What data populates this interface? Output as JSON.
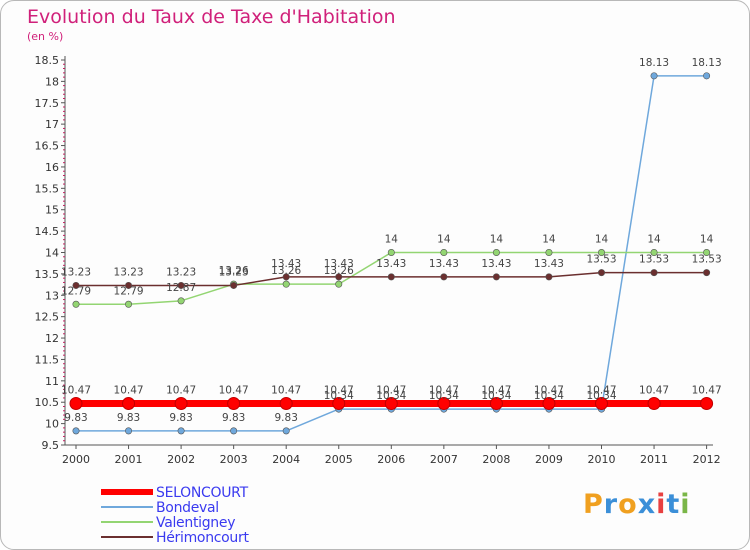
{
  "header": {
    "title": "Evolution du Taux de Taxe d'Habitation",
    "subtitle": "(en %)"
  },
  "chart_data": {
    "type": "line",
    "title": "Evolution du Taux de Taxe d'Habitation",
    "ylabel": "(en %)",
    "x": [
      "2000",
      "2001",
      "2002",
      "2003",
      "2004",
      "2005",
      "2006",
      "2007",
      "2008",
      "2009",
      "2010",
      "2011",
      "2012"
    ],
    "ylim": [
      9.5,
      18.5
    ],
    "yticks": [
      9.5,
      10,
      10.5,
      11,
      11.5,
      12,
      12.5,
      13,
      13.5,
      14,
      14.5,
      15,
      15.5,
      16,
      16.5,
      17,
      17.5,
      18,
      18.5
    ],
    "grid": false,
    "legend_position": "bottom-left",
    "series": [
      {
        "name": "SELONCOURT",
        "color": "#ff0000",
        "values": [
          10.47,
          10.47,
          10.47,
          10.47,
          10.47,
          10.47,
          10.47,
          10.47,
          10.47,
          10.47,
          10.47,
          10.47,
          10.47
        ]
      },
      {
        "name": "Bondeval",
        "color": "#6fa8dc",
        "values": [
          9.83,
          9.83,
          9.83,
          9.83,
          9.83,
          10.34,
          10.34,
          10.34,
          10.34,
          10.34,
          10.34,
          18.13,
          18.13
        ]
      },
      {
        "name": "Valentigney",
        "color": "#93d572",
        "values": [
          12.79,
          12.79,
          12.87,
          13.26,
          13.26,
          13.26,
          14,
          14,
          14,
          14,
          14,
          14,
          14
        ]
      },
      {
        "name": "Hérimoncourt",
        "color": "#6b2f2f",
        "values": [
          13.23,
          13.23,
          13.23,
          13.23,
          13.43,
          13.43,
          13.43,
          13.43,
          13.43,
          13.43,
          13.53,
          13.53,
          13.53
        ]
      }
    ]
  },
  "logo": {
    "letters": [
      "P",
      "r",
      "o",
      "x",
      "i",
      "t",
      "i"
    ],
    "colors": [
      "#f0a020",
      "#3b8fd8",
      "#f0a020",
      "#3b8fd8",
      "#e84040",
      "#3b8fd8",
      "#7ab648"
    ]
  }
}
